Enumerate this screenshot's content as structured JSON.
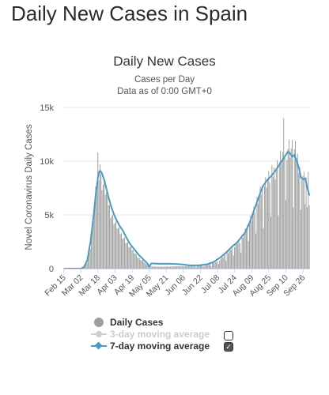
{
  "page": {
    "heading": "Daily New Cases in Spain"
  },
  "chart_data": {
    "type": "bar",
    "title": "Daily New Cases",
    "subtitle_line1": "Cases per Day",
    "subtitle_line2": "Data as of 0:00 GMT+0",
    "xlabel": "",
    "ylabel": "Novel Coronavirus Daily Cases",
    "ylim": [
      0,
      15000
    ],
    "y_ticks": [
      {
        "value": 0,
        "label": "0"
      },
      {
        "value": 5000,
        "label": "5k"
      },
      {
        "value": 10000,
        "label": "10k"
      },
      {
        "value": 15000,
        "label": "15k"
      }
    ],
    "x_tick_labels": [
      "Feb 15",
      "Mar 02",
      "Mar 18",
      "Apr 03",
      "Apr 19",
      "May 05",
      "May 21",
      "Jun 06",
      "Jun 22",
      "Jul 08",
      "Jul 24",
      "Aug 09",
      "Aug 25",
      "Sep 10",
      "Sep 26"
    ],
    "grid": true,
    "legend_placement": "bottom",
    "colors": {
      "bars": "#9e9e9e",
      "line7": "#4a9bbf",
      "line3": "#cfcfcf"
    },
    "series": [
      {
        "name": "Daily Cases",
        "kind": "bar",
        "key": "daily"
      },
      {
        "name": "3-day moving average",
        "kind": "line",
        "key": "ma3",
        "visible": false
      },
      {
        "name": "7-day moving average",
        "kind": "line",
        "key": "ma7",
        "visible": true
      }
    ],
    "x_start_date": "2020-02-15",
    "bar_keypoints": [
      [
        0,
        0
      ],
      [
        14,
        0
      ],
      [
        18,
        100
      ],
      [
        22,
        600
      ],
      [
        25,
        2000
      ],
      [
        27,
        3500
      ],
      [
        29,
        6000
      ],
      [
        31,
        8000
      ],
      [
        33,
        9000
      ],
      [
        34,
        9500
      ],
      [
        35,
        9000
      ],
      [
        36,
        8000
      ],
      [
        38,
        7800
      ],
      [
        40,
        7000
      ],
      [
        42,
        6200
      ],
      [
        44,
        5300
      ],
      [
        46,
        4800
      ],
      [
        48,
        4300
      ],
      [
        50,
        4000
      ],
      [
        52,
        3500
      ],
      [
        55,
        3100
      ],
      [
        58,
        2600
      ],
      [
        62,
        2000
      ],
      [
        66,
        1600
      ],
      [
        70,
        1000
      ],
      [
        74,
        700
      ],
      [
        78,
        400
      ],
      [
        82,
        200
      ],
      [
        90,
        180
      ],
      [
        100,
        200
      ],
      [
        110,
        220
      ],
      [
        120,
        230
      ],
      [
        128,
        280
      ],
      [
        134,
        320
      ],
      [
        140,
        500
      ],
      [
        146,
        800
      ],
      [
        152,
        1400
      ],
      [
        158,
        2000
      ],
      [
        162,
        2300
      ],
      [
        166,
        2800
      ],
      [
        170,
        3500
      ],
      [
        174,
        4500
      ],
      [
        178,
        5500
      ],
      [
        182,
        6500
      ],
      [
        186,
        7500
      ],
      [
        190,
        8300
      ],
      [
        194,
        8700
      ],
      [
        198,
        9300
      ],
      [
        202,
        10000
      ],
      [
        206,
        11000
      ],
      [
        210,
        11500
      ],
      [
        214,
        11200
      ],
      [
        216,
        11000
      ],
      [
        218,
        10800
      ],
      [
        220,
        10000
      ],
      [
        222,
        9500
      ],
      [
        224,
        8700
      ],
      [
        226,
        8000
      ],
      [
        228,
        7500
      ],
      [
        230,
        6500
      ]
    ],
    "bar_overrides": [
      [
        32,
        10800
      ],
      [
        33,
        8200
      ],
      [
        34,
        9700
      ],
      [
        35,
        8800
      ],
      [
        206,
        14000
      ],
      [
        225,
        9000
      ],
      [
        226,
        6000
      ],
      [
        227,
        8500
      ],
      [
        228,
        5700
      ],
      [
        229,
        9000
      ],
      [
        230,
        5900
      ]
    ],
    "ma7_keypoints": [
      [
        0,
        0
      ],
      [
        16,
        0
      ],
      [
        19,
        150
      ],
      [
        22,
        800
      ],
      [
        25,
        2500
      ],
      [
        28,
        5000
      ],
      [
        30,
        7000
      ],
      [
        32,
        8500
      ],
      [
        33,
        9000
      ],
      [
        34,
        9100
      ],
      [
        35,
        9000
      ],
      [
        36,
        8800
      ],
      [
        38,
        8200
      ],
      [
        40,
        7400
      ],
      [
        42,
        6600
      ],
      [
        44,
        5900
      ],
      [
        46,
        5300
      ],
      [
        48,
        4800
      ],
      [
        50,
        4400
      ],
      [
        52,
        4000
      ],
      [
        55,
        3600
      ],
      [
        58,
        3000
      ],
      [
        62,
        2300
      ],
      [
        66,
        1800
      ],
      [
        70,
        1300
      ],
      [
        74,
        900
      ],
      [
        78,
        500
      ],
      [
        80,
        200
      ],
      [
        82,
        480
      ],
      [
        90,
        450
      ],
      [
        100,
        450
      ],
      [
        110,
        400
      ],
      [
        118,
        300
      ],
      [
        126,
        300
      ],
      [
        134,
        400
      ],
      [
        140,
        600
      ],
      [
        146,
        1000
      ],
      [
        152,
        1500
      ],
      [
        158,
        2100
      ],
      [
        162,
        2400
      ],
      [
        166,
        2900
      ],
      [
        170,
        3400
      ],
      [
        174,
        4300
      ],
      [
        178,
        5400
      ],
      [
        182,
        6500
      ],
      [
        186,
        7600
      ],
      [
        190,
        8200
      ],
      [
        194,
        8600
      ],
      [
        198,
        9100
      ],
      [
        202,
        9700
      ],
      [
        206,
        10300
      ],
      [
        210,
        10900
      ],
      [
        212,
        10700
      ],
      [
        214,
        10400
      ],
      [
        216,
        10600
      ],
      [
        218,
        10000
      ],
      [
        220,
        9400
      ],
      [
        222,
        8500
      ],
      [
        224,
        8300
      ],
      [
        226,
        8400
      ],
      [
        228,
        7500
      ],
      [
        230,
        6800
      ]
    ]
  },
  "legend": {
    "daily_label": "Daily Cases",
    "ma3_label": "3-day moving average",
    "ma7_label": "7-day moving average"
  }
}
